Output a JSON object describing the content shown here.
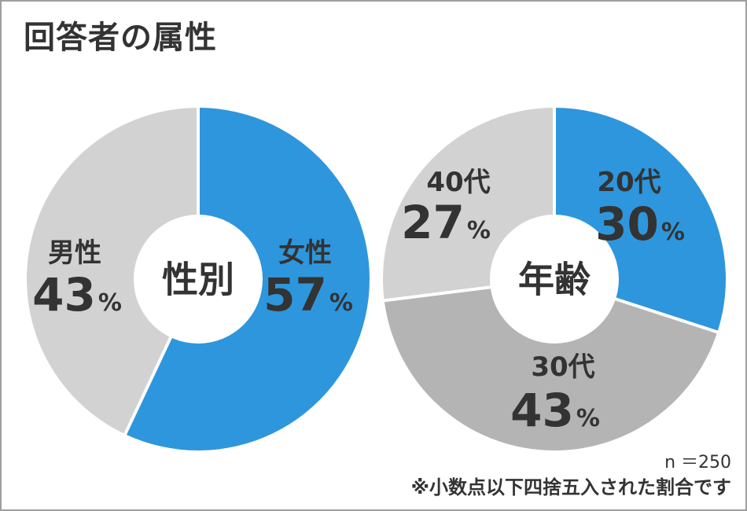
{
  "title": "回答者の属性",
  "colors": {
    "blue": "#2e96dc",
    "light_gray": "#d2d2d2",
    "mid_gray": "#b4b4b4",
    "text": "#333333",
    "separator": "#ffffff"
  },
  "chart_data": [
    {
      "type": "pie",
      "center_label": "性別",
      "slices": [
        {
          "label": "女性",
          "value": 57,
          "value_label": "57",
          "unit": "%",
          "color": "#2e96dc"
        },
        {
          "label": "男性",
          "value": 43,
          "value_label": "43",
          "unit": "%",
          "color": "#d2d2d2"
        }
      ]
    },
    {
      "type": "pie",
      "center_label": "年齢",
      "slices": [
        {
          "label": "20代",
          "value": 30,
          "value_label": "30",
          "unit": "%",
          "color": "#2e96dc"
        },
        {
          "label": "30代",
          "value": 43,
          "value_label": "43",
          "unit": "%",
          "color": "#b4b4b4"
        },
        {
          "label": "40代",
          "value": 27,
          "value_label": "27",
          "unit": "%",
          "color": "#d2d2d2"
        }
      ]
    }
  ],
  "footer": {
    "sample_size": "n ＝250",
    "note": "※小数点以下四捨五入された割合です"
  }
}
